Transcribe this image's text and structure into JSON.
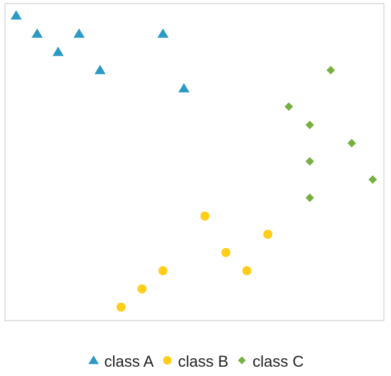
{
  "chart_data": {
    "type": "scatter",
    "title": "",
    "xlabel": "",
    "ylabel": "",
    "xlim": [
      0,
      18
    ],
    "ylim": [
      0,
      17
    ],
    "grid": false,
    "legend_position": "bottom",
    "series": [
      {
        "name": "class A",
        "marker": "triangle",
        "color": "#2b9ac4",
        "points": [
          [
            0.5,
            16.5
          ],
          [
            1.5,
            15.5
          ],
          [
            3.5,
            15.5
          ],
          [
            7.5,
            15.5
          ],
          [
            2.5,
            14.5
          ],
          [
            4.5,
            13.5
          ],
          [
            8.5,
            12.5
          ]
        ]
      },
      {
        "name": "class B",
        "marker": "circle",
        "color": "#ffcd1a",
        "points": [
          [
            9.5,
            5.5
          ],
          [
            12.5,
            4.5
          ],
          [
            10.5,
            3.5
          ],
          [
            7.5,
            2.5
          ],
          [
            11.5,
            2.5
          ],
          [
            6.5,
            1.5
          ],
          [
            5.5,
            0.5
          ]
        ]
      },
      {
        "name": "class C",
        "marker": "diamond",
        "color": "#76b041",
        "points": [
          [
            15.5,
            13.5
          ],
          [
            13.5,
            11.5
          ],
          [
            14.5,
            10.5
          ],
          [
            16.5,
            9.5
          ],
          [
            14.5,
            8.5
          ],
          [
            17.5,
            7.5
          ],
          [
            14.5,
            6.5
          ]
        ]
      }
    ]
  }
}
